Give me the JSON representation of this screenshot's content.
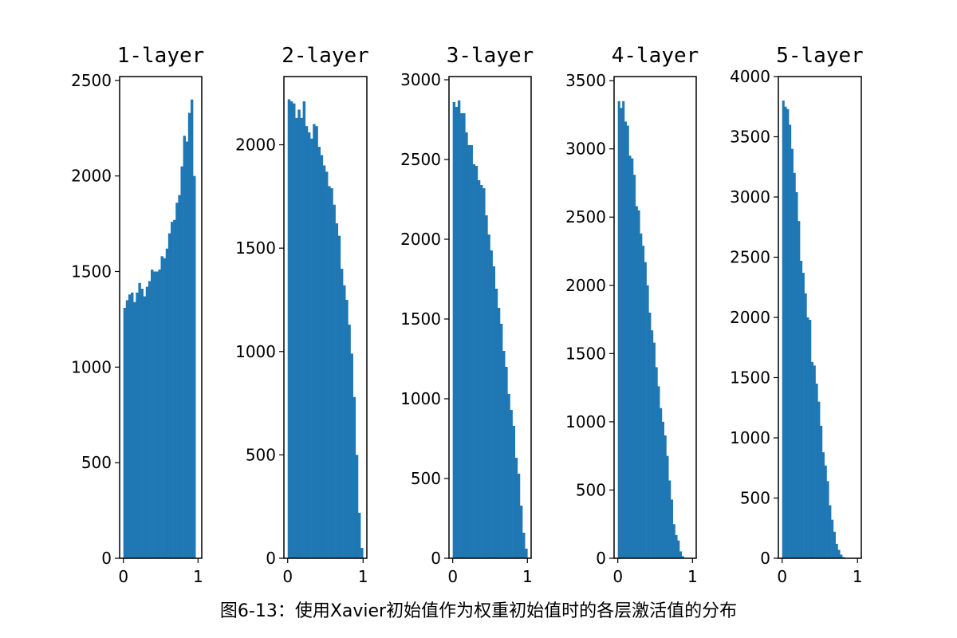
{
  "caption": "图6-13：使用Xavier初始值作为权重初始值时的各层激活值的分布",
  "colors": {
    "bar": "#1f77b4",
    "axis": "#000000"
  },
  "chart_data": [
    {
      "type": "bar",
      "title": "1-layer",
      "xlim": [
        -0.05,
        1.05
      ],
      "ylim": [
        0,
        2520
      ],
      "xticks": [
        0,
        1
      ],
      "yticks": [
        0,
        500,
        1000,
        1500,
        2000,
        2500
      ],
      "bin_start": 0,
      "bin_width": 0.033333,
      "values": [
        1310,
        1350,
        1380,
        1390,
        1340,
        1390,
        1440,
        1410,
        1370,
        1420,
        1450,
        1510,
        1500,
        1500,
        1510,
        1580,
        1570,
        1620,
        1700,
        1760,
        1770,
        1860,
        1900,
        2050,
        2210,
        2180,
        2330,
        2400,
        2000
      ]
    },
    {
      "type": "bar",
      "title": "2-layer",
      "xlim": [
        -0.05,
        1.05
      ],
      "ylim": [
        0,
        2330
      ],
      "xticks": [
        0,
        1
      ],
      "yticks": [
        0,
        500,
        1000,
        1500,
        2000
      ],
      "bin_start": 0,
      "bin_width": 0.033333,
      "values": [
        2220,
        2210,
        2200,
        2130,
        2170,
        2130,
        2210,
        2090,
        2060,
        2030,
        2100,
        2090,
        1990,
        1950,
        1900,
        1870,
        1800,
        1790,
        1710,
        1620,
        1560,
        1400,
        1320,
        1250,
        1130,
        990,
        780,
        500,
        220,
        50
      ]
    },
    {
      "type": "bar",
      "title": "3-layer",
      "xlim": [
        -0.05,
        1.05
      ],
      "ylim": [
        0,
        3020
      ],
      "xticks": [
        0,
        1
      ],
      "yticks": [
        0,
        500,
        1000,
        1500,
        2000,
        2500,
        3000
      ],
      "bin_start": 0,
      "bin_width": 0.033333,
      "values": [
        2860,
        2830,
        2870,
        2790,
        2790,
        2670,
        2590,
        2590,
        2470,
        2460,
        2370,
        2340,
        2320,
        2150,
        2030,
        1930,
        1830,
        1690,
        1570,
        1470,
        1300,
        1200,
        1030,
        930,
        830,
        630,
        530,
        330,
        160,
        60
      ]
    },
    {
      "type": "bar",
      "title": "4-layer",
      "xlim": [
        -0.05,
        1.05
      ],
      "ylim": [
        0,
        3530
      ],
      "xticks": [
        0,
        1
      ],
      "yticks": [
        0,
        500,
        1000,
        1500,
        2000,
        2500,
        3000,
        3500
      ],
      "bin_start": 0,
      "bin_width": 0.0295,
      "values": [
        3350,
        3300,
        3350,
        3200,
        3170,
        2950,
        2930,
        2810,
        2580,
        2550,
        2380,
        2290,
        2170,
        2000,
        1800,
        1670,
        1580,
        1400,
        1260,
        1100,
        1000,
        900,
        750,
        570,
        430,
        250,
        170,
        130,
        50,
        15
      ]
    },
    {
      "type": "bar",
      "title": "5-layer",
      "xlim": [
        -0.05,
        1.05
      ],
      "ylim": [
        0,
        4000
      ],
      "xticks": [
        0,
        1
      ],
      "yticks": [
        0,
        500,
        1000,
        1500,
        2000,
        2500,
        3000,
        3500,
        4000
      ],
      "bin_start": 0,
      "bin_width": 0.0295,
      "values": [
        3800,
        3750,
        3730,
        3600,
        3400,
        3200,
        3040,
        2800,
        2470,
        2370,
        2200,
        2000,
        1980,
        1630,
        1600,
        1450,
        1300,
        1100,
        880,
        770,
        640,
        440,
        320,
        220,
        120,
        70,
        30,
        10
      ]
    }
  ]
}
